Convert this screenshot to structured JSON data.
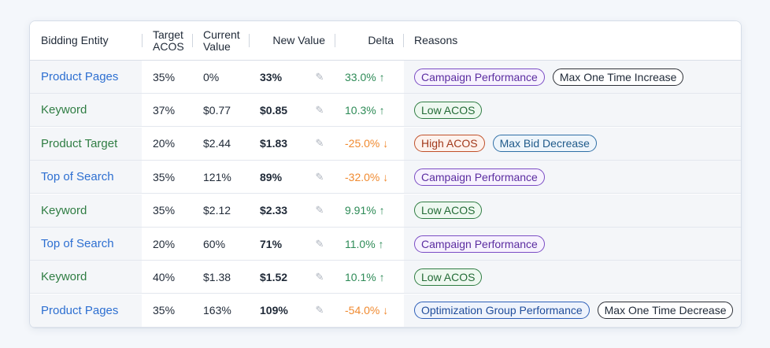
{
  "headers": {
    "entity": "Bidding Entity",
    "target": [
      "Target",
      "ACOS"
    ],
    "current": [
      "Current",
      "Value"
    ],
    "new_value": "New Value",
    "delta": "Delta",
    "reasons": "Reasons"
  },
  "rows": [
    {
      "entity": "Product Pages",
      "entity_color": "blue",
      "target": "35%",
      "current": "0%",
      "new_value": "33%",
      "delta": "33.0% ↑",
      "dir": "up",
      "reasons": [
        {
          "label": "Campaign Performance",
          "style": "purple"
        },
        {
          "label": "Max One Time Increase",
          "style": "black"
        }
      ]
    },
    {
      "entity": "Keyword",
      "entity_color": "green",
      "target": "37%",
      "current": "$0.77",
      "new_value": "$0.85",
      "delta": "10.3% ↑",
      "dir": "up",
      "reasons": [
        {
          "label": "Low ACOS",
          "style": "green"
        }
      ]
    },
    {
      "entity": "Product Target",
      "entity_color": "green",
      "target": "20%",
      "current": "$2.44",
      "new_value": "$1.83",
      "delta": "-25.0% ↓",
      "dir": "down",
      "reasons": [
        {
          "label": "High ACOS",
          "style": "red"
        },
        {
          "label": "Max Bid Decrease",
          "style": "navy"
        }
      ]
    },
    {
      "entity": "Top of Search",
      "entity_color": "blue",
      "target": "35%",
      "current": "121%",
      "new_value": "89%",
      "delta": "-32.0% ↓",
      "dir": "down",
      "reasons": [
        {
          "label": "Campaign Performance",
          "style": "purple"
        }
      ]
    },
    {
      "entity": "Keyword",
      "entity_color": "green",
      "target": "35%",
      "current": "$2.12",
      "new_value": "$2.33",
      "delta": "9.91% ↑",
      "dir": "up",
      "reasons": [
        {
          "label": "Low ACOS",
          "style": "green"
        }
      ]
    },
    {
      "entity": "Top of Search",
      "entity_color": "blue",
      "target": "20%",
      "current": "60%",
      "new_value": "71%",
      "delta": "11.0% ↑",
      "dir": "up",
      "reasons": [
        {
          "label": "Campaign Performance",
          "style": "purple"
        }
      ]
    },
    {
      "entity": "Keyword",
      "entity_color": "green",
      "target": "40%",
      "current": "$1.38",
      "new_value": "$1.52",
      "delta": "10.1% ↑",
      "dir": "up",
      "reasons": [
        {
          "label": "Low ACOS",
          "style": "green"
        }
      ]
    },
    {
      "entity": "Product Pages",
      "entity_color": "blue",
      "target": "35%",
      "current": "163%",
      "new_value": "109%",
      "delta": "-54.0% ↓",
      "dir": "down",
      "reasons": [
        {
          "label": "Optimization Group Performance",
          "style": "indigo"
        },
        {
          "label": "Max One Time Decrease",
          "style": "black"
        }
      ]
    }
  ],
  "icons": {
    "edit": "pencil-icon"
  },
  "colors": {
    "entity_blue": "#2d6fd1",
    "entity_green": "#2f7d43",
    "delta_up": "#2e8b57",
    "delta_down": "#f08a30"
  }
}
